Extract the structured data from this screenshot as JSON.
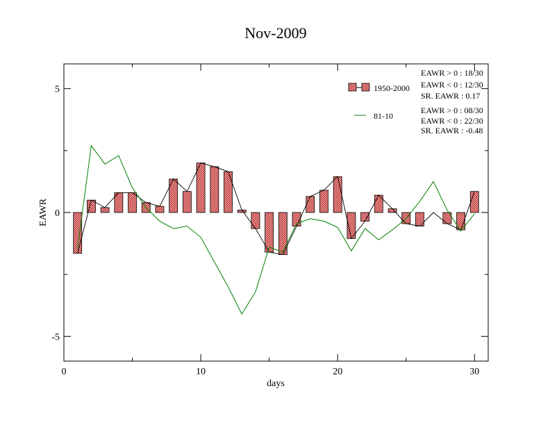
{
  "chart_data": {
    "type": "bar",
    "title": "Nov-2009",
    "xlabel": "days",
    "ylabel": "EAWR",
    "xlim": [
      0,
      31
    ],
    "ylim": [
      -6,
      6
    ],
    "x_ticks": [
      0,
      10,
      20,
      30
    ],
    "x_tick_labels": [
      "0",
      "10",
      "20",
      "30"
    ],
    "y_ticks": [
      -5,
      0,
      5
    ],
    "y_tick_labels": [
      "-5",
      "0",
      "5"
    ],
    "grid": false,
    "legend_position": "top-right",
    "days": [
      1,
      2,
      3,
      4,
      5,
      6,
      7,
      8,
      9,
      10,
      11,
      12,
      13,
      14,
      15,
      16,
      17,
      18,
      19,
      20,
      21,
      22,
      23,
      24,
      25,
      26,
      27,
      28,
      29,
      30
    ],
    "series": [
      {
        "name": "1950-2000",
        "kind": "bar",
        "style": "red-hatched",
        "values": [
          -1.65,
          0.5,
          0.2,
          0.8,
          0.8,
          0.4,
          0.25,
          1.35,
          0.85,
          2.0,
          1.85,
          1.65,
          0.1,
          -0.65,
          -1.6,
          -1.7,
          -0.55,
          0.65,
          0.9,
          1.45,
          -1.05,
          -0.35,
          0.7,
          0.15,
          -0.45,
          -0.55,
          0.0,
          -0.45,
          -0.7,
          0.85
        ]
      },
      {
        "name": "81-10",
        "kind": "line",
        "color": "#008000",
        "values": [
          -1.45,
          2.7,
          1.95,
          2.3,
          1.0,
          0.2,
          -0.35,
          -0.65,
          -0.55,
          -1.0,
          -2.0,
          -3.0,
          -4.1,
          -3.2,
          -1.4,
          -1.6,
          -0.45,
          -0.25,
          -0.35,
          -0.6,
          -1.55,
          -0.65,
          -1.1,
          -0.7,
          -0.25,
          0.45,
          1.25,
          0.1,
          -0.75,
          -0.05
        ]
      }
    ],
    "stats": {
      "1950-2000": [
        "EAWR > 0 : 18/30",
        "EAWR < 0 : 12/30",
        "SR. EAWR :  0.17"
      ],
      "81-10": [
        "EAWR > 0 : 08/30",
        "EAWR < 0 : 22/30",
        "SR. EAWR : -0.48"
      ]
    },
    "colors": {
      "bar_fill": "#f08080",
      "bar_hatch": "#8b0000",
      "bar_connector_line": "#000000",
      "line_81_10": "#008000",
      "axis": "#000000"
    }
  }
}
